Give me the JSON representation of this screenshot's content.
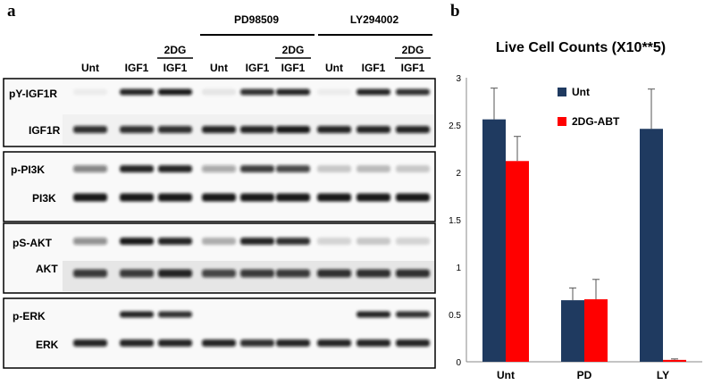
{
  "panel_a": {
    "letter": "a",
    "treatment_groups": [
      "PD98509",
      "LY294002"
    ],
    "lane_labels": [
      "Unt",
      "IGF1",
      "IGF1",
      "Unt",
      "IGF1",
      "IGF1",
      "Unt",
      "IGF1",
      "IGF1"
    ],
    "sub_label": "2DG",
    "blot_rows": [
      "pY-IGF1R",
      "IGF1R",
      "p-PI3K",
      "PI3K",
      "pS-AKT",
      "AKT",
      "p-ERK",
      "ERK"
    ]
  },
  "panel_b": {
    "letter": "b"
  },
  "chart_data": {
    "type": "bar",
    "title": "Live Cell Counts (X10**5)",
    "categories": [
      "Unt",
      "PD",
      "LY"
    ],
    "series": [
      {
        "name": "Unt",
        "values": [
          2.56,
          0.65,
          2.46
        ],
        "errors": [
          0.33,
          0.13,
          0.42
        ],
        "color": "#1f3a60"
      },
      {
        "name": "2DG-ABT",
        "values": [
          2.12,
          0.66,
          0.02
        ],
        "errors": [
          0.26,
          0.21,
          0.01
        ],
        "color": "#ff0000"
      }
    ],
    "y_ticks": [
      "0",
      "0.5",
      "1",
      "1.5",
      "2",
      "2.5",
      "3"
    ],
    "ylim": [
      0,
      3
    ],
    "legend_position": "top-right",
    "grid": false
  }
}
